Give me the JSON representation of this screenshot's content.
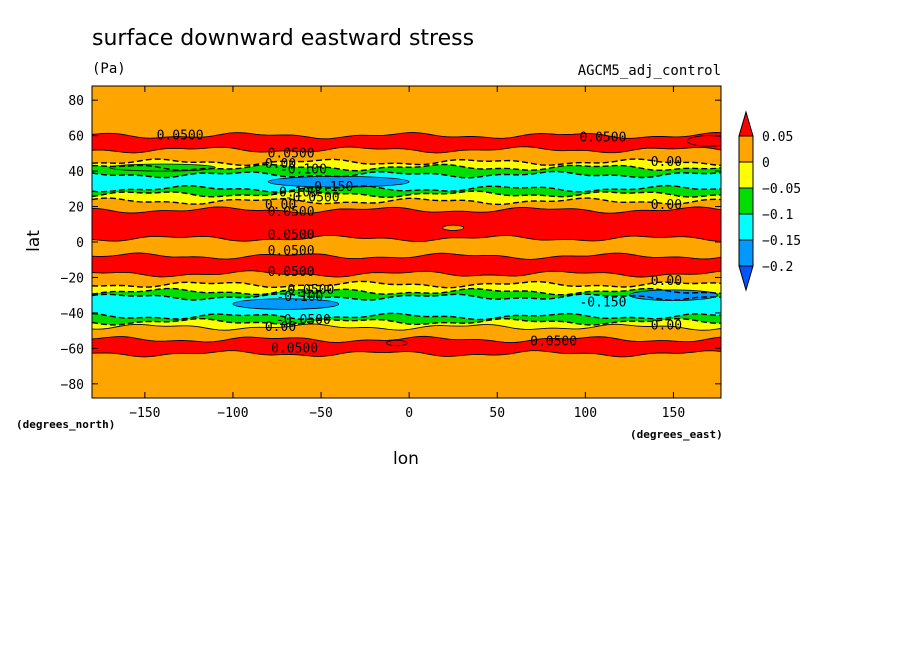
{
  "chart_data": {
    "type": "heatmap",
    "title": "surface downward eastward stress",
    "units": "(Pa)",
    "dataset": "AGCM5_adj_control",
    "xlabel": "lon",
    "ylabel": "lat",
    "x_unit": "(degrees_east)",
    "y_unit": "(degrees_north)",
    "xlim": [
      -180,
      177
    ],
    "ylim": [
      -88,
      88
    ],
    "x_ticks": [
      {
        "value": -150,
        "label": "−150"
      },
      {
        "value": -100,
        "label": "−100"
      },
      {
        "value": -50,
        "label": "−50"
      },
      {
        "value": 0,
        "label": "0"
      },
      {
        "value": 50,
        "label": "50"
      },
      {
        "value": 100,
        "label": "100"
      },
      {
        "value": 150,
        "label": "150"
      }
    ],
    "y_ticks": [
      {
        "value": 80,
        "label": "80"
      },
      {
        "value": 60,
        "label": "60"
      },
      {
        "value": 40,
        "label": "40"
      },
      {
        "value": 20,
        "label": "20"
      },
      {
        "value": 0,
        "label": "0"
      },
      {
        "value": -20,
        "label": "−20"
      },
      {
        "value": -40,
        "label": "−40"
      },
      {
        "value": -60,
        "label": "−60"
      },
      {
        "value": -80,
        "label": "−80"
      }
    ],
    "colorbar": {
      "levels": [
        0.05,
        0,
        -0.05,
        -0.1,
        -0.15,
        -0.2
      ],
      "labels": [
        "0.05",
        "0",
        "−0.05",
        "−0.1",
        "−0.15",
        "−0.2"
      ],
      "colors": [
        "#ff0000",
        "#ffa500",
        "#ffff00",
        "#00dd00",
        "#00ffff",
        "#0099ff",
        "#0055ff"
      ],
      "extend": "both"
    },
    "zonal_bands": [
      {
        "lat_min": 60,
        "lat_max": 88,
        "level": "0 to 0.05"
      },
      {
        "lat_min": 52,
        "lat_max": 60,
        "level": "> 0.05"
      },
      {
        "lat_min": 45,
        "lat_max": 52,
        "level": "0 to 0.05"
      },
      {
        "lat_min": 42,
        "lat_max": 45,
        "level": "-0.05 to 0"
      },
      {
        "lat_min": 38,
        "lat_max": 42,
        "level": "-0.1 to -0.05"
      },
      {
        "lat_min": 30,
        "lat_max": 38,
        "level": "-0.15 to -0.1"
      },
      {
        "lat_min": 27,
        "lat_max": 30,
        "level": "-0.1 to -0.05"
      },
      {
        "lat_min": 23,
        "lat_max": 27,
        "level": "-0.05 to 0"
      },
      {
        "lat_min": 18,
        "lat_max": 23,
        "level": "0 to 0.05"
      },
      {
        "lat_min": 2,
        "lat_max": 18,
        "level": "> 0.05"
      },
      {
        "lat_min": -8,
        "lat_max": 2,
        "level": "0 to 0.05"
      },
      {
        "lat_min": -18,
        "lat_max": -8,
        "level": "> 0.05"
      },
      {
        "lat_min": -24,
        "lat_max": -18,
        "level": "0 to 0.05"
      },
      {
        "lat_min": -28,
        "lat_max": -24,
        "level": "-0.05 to 0"
      },
      {
        "lat_min": -31,
        "lat_max": -28,
        "level": "-0.1 to -0.05"
      },
      {
        "lat_min": -42,
        "lat_max": -31,
        "level": "-0.15 to -0.1"
      },
      {
        "lat_min": -45,
        "lat_max": -42,
        "level": "-0.1 to -0.05"
      },
      {
        "lat_min": -48,
        "lat_max": -45,
        "level": "-0.05 to 0"
      },
      {
        "lat_min": -55,
        "lat_max": -48,
        "level": "0 to 0.05"
      },
      {
        "lat_min": -63,
        "lat_max": -55,
        "level": "> 0.05"
      },
      {
        "lat_min": -88,
        "lat_max": -63,
        "level": "0 to 0.05"
      }
    ],
    "contour_labels": [
      {
        "text": "0.0500",
        "lon": -130,
        "lat": 60
      },
      {
        "text": "0.0500",
        "lon": 110,
        "lat": 59
      },
      {
        "text": "0.0500",
        "lon": -67,
        "lat": 50
      },
      {
        "text": "0.00",
        "lon": 146,
        "lat": 45
      },
      {
        "text": "0.00",
        "lon": -73,
        "lat": 44
      },
      {
        "text": "-0.100",
        "lon": -60,
        "lat": 41
      },
      {
        "text": "-0.150",
        "lon": -45,
        "lat": 31
      },
      {
        "text": "-0.100",
        "lon": -65,
        "lat": 28
      },
      {
        "text": "-0.0500",
        "lon": -55,
        "lat": 25
      },
      {
        "text": "0.00",
        "lon": -73,
        "lat": 21
      },
      {
        "text": "0.0500",
        "lon": -67,
        "lat": 17
      },
      {
        "text": "0.00",
        "lon": 146,
        "lat": 21
      },
      {
        "text": "0.0500",
        "lon": -67,
        "lat": 4
      },
      {
        "text": "0.0500",
        "lon": -67,
        "lat": -5
      },
      {
        "text": "0.0500",
        "lon": -67,
        "lat": -17
      },
      {
        "text": "0.00",
        "lon": 146,
        "lat": -22
      },
      {
        "text": "-0.0500",
        "lon": -58,
        "lat": -27
      },
      {
        "text": "-0.100",
        "lon": -62,
        "lat": -31
      },
      {
        "text": "-0.150",
        "lon": 110,
        "lat": -34
      },
      {
        "text": "-0.0500",
        "lon": -60,
        "lat": -44
      },
      {
        "text": "0.00",
        "lon": -73,
        "lat": -48
      },
      {
        "text": "0.00",
        "lon": 146,
        "lat": -47
      },
      {
        "text": "0.0500",
        "lon": 82,
        "lat": -56
      },
      {
        "text": "0.0500",
        "lon": -65,
        "lat": -60
      }
    ]
  }
}
